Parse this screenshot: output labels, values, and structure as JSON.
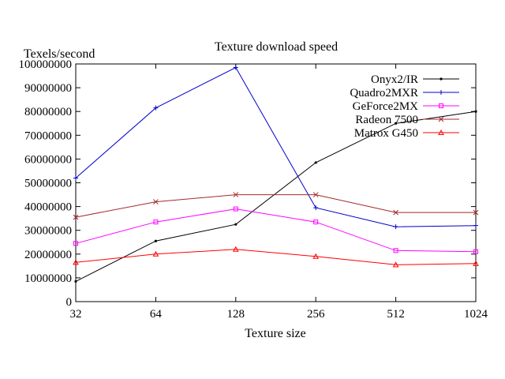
{
  "chart_data": {
    "type": "line",
    "title": "Texture download speed",
    "xlabel": "Texture size",
    "ylabel": "Texels/second",
    "categories": [
      "32",
      "64",
      "128",
      "256",
      "512",
      "1024"
    ],
    "ylim": [
      0,
      100000000
    ],
    "yticks": [
      0,
      10000000,
      20000000,
      30000000,
      40000000,
      50000000,
      60000000,
      70000000,
      80000000,
      90000000,
      100000000
    ],
    "grid": false,
    "legend_position": "top-right",
    "series": [
      {
        "name": "Onyx2/IR",
        "color": "#000000",
        "marker": "dot",
        "values": [
          8500000,
          25500000,
          32500000,
          58500000,
          75000000,
          80000000
        ]
      },
      {
        "name": "Quadro2MXR",
        "color": "#0000cc",
        "marker": "plus",
        "values": [
          52000000,
          81500000,
          98500000,
          39500000,
          31500000,
          32000000
        ]
      },
      {
        "name": "GeForce2MX",
        "color": "#ff00ff",
        "marker": "square",
        "values": [
          24500000,
          33500000,
          39000000,
          33500000,
          21500000,
          21000000
        ]
      },
      {
        "name": "Radeon 7500",
        "color": "#a52a2a",
        "marker": "cross",
        "values": [
          35500000,
          42000000,
          45000000,
          45000000,
          37500000,
          37500000
        ]
      },
      {
        "name": "Matrox G450",
        "color": "#ff0000",
        "marker": "triangle",
        "values": [
          16500000,
          20000000,
          22000000,
          19000000,
          15500000,
          16000000
        ]
      }
    ]
  }
}
